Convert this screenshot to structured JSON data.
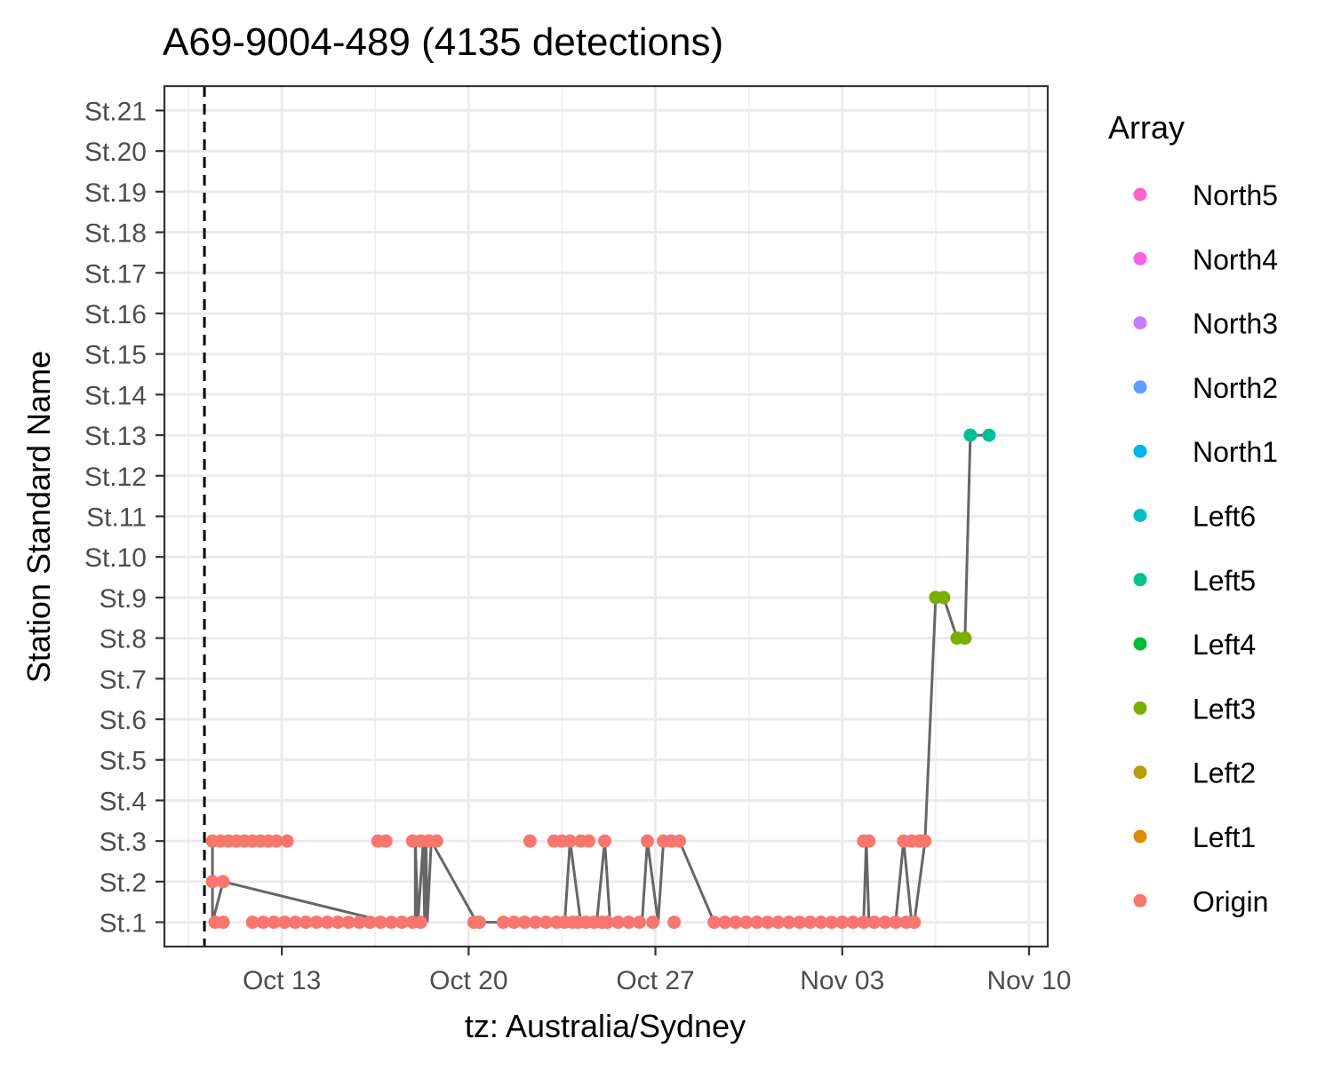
{
  "chart_data": {
    "type": "scatter",
    "title": "A69-9004-489 (4135 detections)",
    "xlabel": "tz: Australia/Sydney",
    "ylabel": "Station Standard Name",
    "x_ticks": [
      "Oct 13",
      "Oct 20",
      "Oct 27",
      "Nov 03",
      "Nov 10"
    ],
    "x_tick_dates": [
      "10-13",
      "10-20",
      "10-27",
      "11-03",
      "11-10"
    ],
    "xlim": [
      "10-08.6",
      "11-10.7"
    ],
    "y_categories": [
      "St.1",
      "St.2",
      "St.3",
      "St.4",
      "St.5",
      "St.6",
      "St.7",
      "St.8",
      "St.9",
      "St.10",
      "St.11",
      "St.12",
      "St.13",
      "St.14",
      "St.15",
      "St.16",
      "St.17",
      "St.18",
      "St.19",
      "St.20",
      "St.21"
    ],
    "release_date": "10-10.1",
    "grid": true,
    "legend": {
      "title": "Array",
      "placement": "right",
      "items": [
        {
          "name": "North5",
          "color": "#FF61C3"
        },
        {
          "name": "North4",
          "color": "#F564E3"
        },
        {
          "name": "North3",
          "color": "#C77CFF"
        },
        {
          "name": "North2",
          "color": "#619CFF"
        },
        {
          "name": "North1",
          "color": "#00B4F0"
        },
        {
          "name": "Left6",
          "color": "#00BFC4"
        },
        {
          "name": "Left5",
          "color": "#00C094"
        },
        {
          "name": "Left4",
          "color": "#00BA38"
        },
        {
          "name": "Left3",
          "color": "#7CAE00"
        },
        {
          "name": "Left2",
          "color": "#B79F00"
        },
        {
          "name": "Left1",
          "color": "#DE8C00"
        },
        {
          "name": "Origin",
          "color": "#F8766D"
        }
      ]
    },
    "line_color": "#666666",
    "series": [
      {
        "name": "Origin",
        "color": "#F8766D",
        "points": [
          [
            "10-10.4",
            2
          ],
          [
            "10-10.8",
            2
          ],
          [
            "10-10.4",
            3
          ],
          [
            "10-10.7",
            3
          ],
          [
            "10-11.0",
            3
          ],
          [
            "10-11.3",
            3
          ],
          [
            "10-11.6",
            3
          ],
          [
            "10-11.9",
            3
          ],
          [
            "10-12.2",
            3
          ],
          [
            "10-12.5",
            3
          ],
          [
            "10-12.8",
            3
          ],
          [
            "10-13.2",
            3
          ],
          [
            "10-10.5",
            1
          ],
          [
            "10-10.8",
            1
          ],
          [
            "10-11.9",
            1
          ],
          [
            "10-12.3",
            1
          ],
          [
            "10-12.7",
            1
          ],
          [
            "10-13.1",
            1
          ],
          [
            "10-13.5",
            1
          ],
          [
            "10-13.9",
            1
          ],
          [
            "10-14.3",
            1
          ],
          [
            "10-14.7",
            1
          ],
          [
            "10-15.1",
            1
          ],
          [
            "10-15.5",
            1
          ],
          [
            "10-15.9",
            1
          ],
          [
            "10-16.3",
            1
          ],
          [
            "10-16.7",
            1
          ],
          [
            "10-17.1",
            1
          ],
          [
            "10-17.5",
            1
          ],
          [
            "10-17.9",
            1
          ],
          [
            "10-18.2",
            1
          ],
          [
            "10-16.6",
            3
          ],
          [
            "10-16.9",
            3
          ],
          [
            "10-17.9",
            3
          ],
          [
            "10-18.2",
            3
          ],
          [
            "10-18.5",
            3
          ],
          [
            "10-18.8",
            3
          ],
          [
            "10-20.2",
            1
          ],
          [
            "10-20.4",
            1
          ],
          [
            "10-21.3",
            1
          ],
          [
            "10-21.7",
            1
          ],
          [
            "10-22.1",
            1
          ],
          [
            "10-22.5",
            1
          ],
          [
            "10-22.9",
            1
          ],
          [
            "10-23.3",
            1
          ],
          [
            "10-23.6",
            1
          ],
          [
            "10-23.9",
            1
          ],
          [
            "10-22.3",
            3
          ],
          [
            "10-23.2",
            3
          ],
          [
            "10-23.5",
            3
          ],
          [
            "10-23.8",
            3
          ],
          [
            "10-24.2",
            3
          ],
          [
            "10-24.5",
            3
          ],
          [
            "10-24.1",
            1
          ],
          [
            "10-24.4",
            1
          ],
          [
            "10-24.7",
            1
          ],
          [
            "10-25.0",
            1
          ],
          [
            "10-25.1",
            3
          ],
          [
            "10-25.2",
            1
          ],
          [
            "10-25.6",
            1
          ],
          [
            "10-26.0",
            1
          ],
          [
            "10-26.4",
            1
          ],
          [
            "10-26.7",
            3
          ],
          [
            "10-27.3",
            3
          ],
          [
            "10-27.6",
            3
          ],
          [
            "10-27.9",
            3
          ],
          [
            "10-26.9",
            1
          ],
          [
            "10-27.7",
            1
          ],
          [
            "10-29.2",
            1
          ],
          [
            "10-29.6",
            1
          ],
          [
            "10-30.0",
            1
          ],
          [
            "10-30.4",
            1
          ],
          [
            "10-30.8",
            1
          ],
          [
            "10-31.2",
            1
          ],
          [
            "10-31.6",
            1
          ],
          [
            "11-01.0",
            1
          ],
          [
            "11-01.4",
            1
          ],
          [
            "11-01.8",
            1
          ],
          [
            "11-02.2",
            1
          ],
          [
            "11-02.6",
            1
          ],
          [
            "11-03.0",
            1
          ],
          [
            "11-03.4",
            1
          ],
          [
            "11-03.8",
            1
          ],
          [
            "11-04.2",
            1
          ],
          [
            "11-04.6",
            1
          ],
          [
            "11-05.0",
            1
          ],
          [
            "11-05.4",
            1
          ],
          [
            "11-05.7",
            1
          ],
          [
            "11-03.8",
            3
          ],
          [
            "11-04.0",
            3
          ],
          [
            "11-05.3",
            3
          ],
          [
            "11-05.6",
            3
          ],
          [
            "11-05.9",
            3
          ],
          [
            "11-06.1",
            3
          ]
        ]
      },
      {
        "name": "Left3",
        "color": "#7CAE00",
        "points": [
          [
            "11-06.5",
            9
          ],
          [
            "11-06.8",
            9
          ],
          [
            "11-07.3",
            8
          ],
          [
            "11-07.6",
            8
          ]
        ]
      },
      {
        "name": "Left5",
        "color": "#00C094",
        "points": [
          [
            "11-07.8",
            13
          ],
          [
            "11-08.5",
            13
          ]
        ]
      }
    ],
    "path": [
      [
        "10-10.4",
        3
      ],
      [
        "10-10.4",
        1
      ],
      [
        "10-10.8",
        2
      ],
      [
        "10-17.0",
        1
      ],
      [
        "10-18.0",
        1
      ],
      [
        "10-18.0",
        3
      ],
      [
        "10-18.1",
        1
      ],
      [
        "10-18.3",
        3
      ],
      [
        "10-18.35",
        1
      ],
      [
        "10-18.4",
        3
      ],
      [
        "10-18.45",
        1
      ],
      [
        "10-18.6",
        3
      ],
      [
        "10-20.3",
        1
      ],
      [
        "10-23.6",
        1
      ],
      [
        "10-23.8",
        3
      ],
      [
        "10-24.2",
        1
      ],
      [
        "10-24.8",
        1
      ],
      [
        "10-25.1",
        3
      ],
      [
        "10-25.3",
        1
      ],
      [
        "10-26.5",
        1
      ],
      [
        "10-26.7",
        3
      ],
      [
        "10-27.1",
        1
      ],
      [
        "10-27.3",
        3
      ],
      [
        "10-27.9",
        3
      ],
      [
        "10-29.2",
        1
      ],
      [
        "11-03.8",
        1
      ],
      [
        "11-03.9",
        3
      ],
      [
        "11-04.0",
        1
      ],
      [
        "11-05.0",
        1
      ],
      [
        "11-05.3",
        3
      ],
      [
        "11-05.6",
        1
      ],
      [
        "11-05.7",
        1
      ],
      [
        "11-06.1",
        3
      ],
      [
        "11-06.5",
        9
      ],
      [
        "11-06.8",
        9
      ],
      [
        "11-07.3",
        8
      ],
      [
        "11-07.6",
        8
      ],
      [
        "11-07.8",
        13
      ],
      [
        "11-08.5",
        13
      ]
    ]
  }
}
